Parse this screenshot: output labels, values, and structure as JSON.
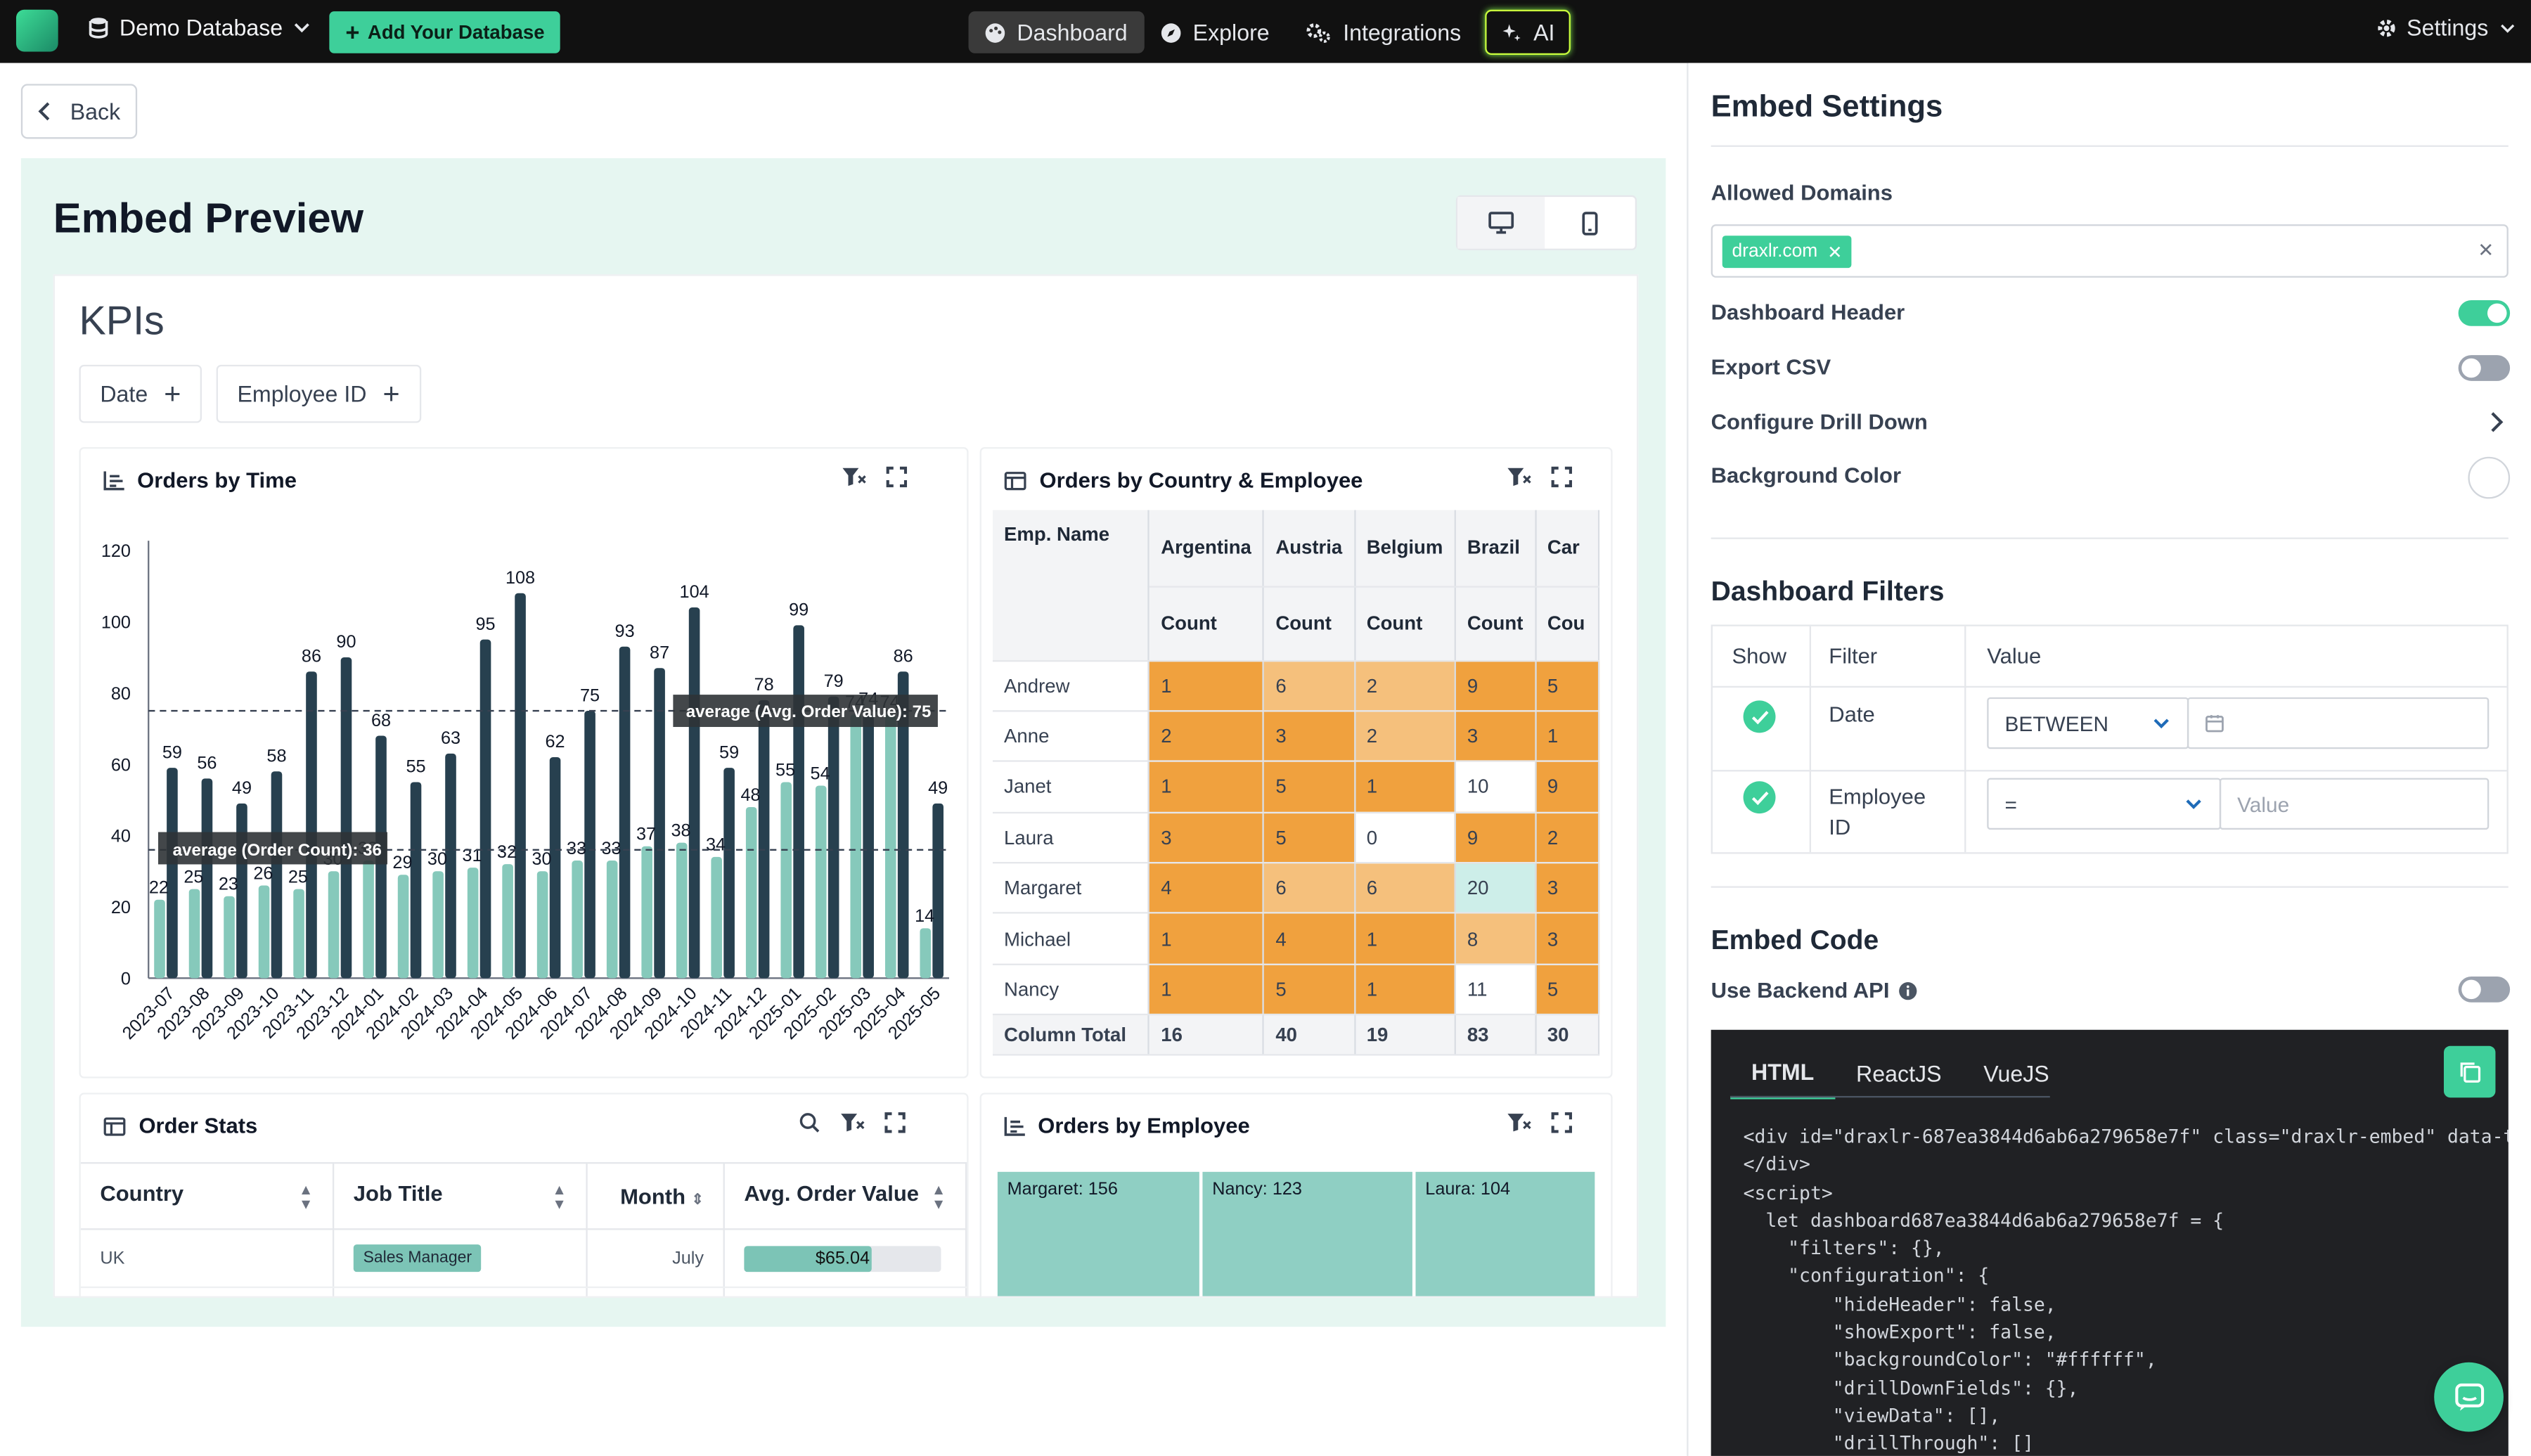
{
  "topbar": {
    "database": "Demo Database",
    "add_db": "Add Your Database",
    "nav": [
      {
        "label": "Dashboard",
        "icon": "palette-icon"
      },
      {
        "label": "Explore",
        "icon": "compass-icon"
      },
      {
        "label": "Integrations",
        "icon": "gears-icon"
      },
      {
        "label": "AI",
        "icon": "sparkles-icon"
      }
    ],
    "settings": "Settings"
  },
  "back_label": "Back",
  "preview": {
    "title": "Embed Preview",
    "dashboard_title": "KPIs",
    "filters": [
      "Date",
      "Employee ID"
    ]
  },
  "cards": {
    "orders_by_time": "Orders by Time",
    "orders_by_country": "Orders by Country & Employee",
    "order_stats": "Order Stats",
    "orders_by_employee": "Orders by Employee"
  },
  "chart_data": {
    "type": "bar",
    "title": "Orders by Time",
    "categories": [
      "2023-07",
      "2023-08",
      "2023-09",
      "2023-10",
      "2023-11",
      "2023-12",
      "2024-01",
      "2024-02",
      "2024-03",
      "2024-04",
      "2024-05",
      "2024-06",
      "2024-07",
      "2024-08",
      "2024-09",
      "2024-10",
      "2024-11",
      "2024-12",
      "2025-01",
      "2025-02",
      "2025-03",
      "2025-04",
      "2025-05"
    ],
    "series": [
      {
        "values": [
          22,
          25,
          23,
          26,
          25,
          30,
          33,
          29,
          30,
          31,
          32,
          30,
          33,
          33,
          37,
          38,
          34,
          48,
          55,
          54,
          74,
          74,
          14
        ],
        "color": "#86c9bb"
      },
      {
        "values": [
          59,
          56,
          49,
          58,
          86,
          90,
          68,
          55,
          63,
          95,
          108,
          62,
          75,
          93,
          87,
          104,
          59,
          78,
          99,
          79,
          74,
          86,
          49
        ],
        "color": "#27404f"
      }
    ],
    "ylim": [
      0,
      120
    ],
    "yticks": [
      0,
      20,
      40,
      60,
      80,
      100,
      120
    ],
    "grid": false,
    "reference_lines": [
      {
        "label": "average (Order Count): 36",
        "value": 36
      },
      {
        "label": "average (Avg. Order Value): 75",
        "value": 75
      }
    ]
  },
  "pivot": {
    "row_header": "Emp. Name",
    "countries": [
      "Argentina",
      "Austria",
      "Belgium",
      "Brazil",
      "Car"
    ],
    "measure": "Count",
    "measure_cut": "Cou",
    "rows": [
      {
        "name": "Andrew",
        "values": [
          "1",
          "6",
          "2",
          "9",
          "5"
        ]
      },
      {
        "name": "Anne",
        "values": [
          "2",
          "3",
          "2",
          "3",
          "1"
        ]
      },
      {
        "name": "Janet",
        "values": [
          "1",
          "5",
          "1",
          "10",
          "9"
        ]
      },
      {
        "name": "Laura",
        "values": [
          "3",
          "5",
          "0",
          "9",
          "2"
        ]
      },
      {
        "name": "Margaret",
        "values": [
          "4",
          "6",
          "6",
          "20",
          "3"
        ]
      },
      {
        "name": "Michael",
        "values": [
          "1",
          "4",
          "1",
          "8",
          "3"
        ]
      },
      {
        "name": "Nancy",
        "values": [
          "1",
          "5",
          "1",
          "11",
          "5"
        ]
      }
    ],
    "total_label": "Column Total",
    "totals": [
      "16",
      "40",
      "19",
      "83",
      "30"
    ]
  },
  "order_stats": {
    "columns": [
      "Country",
      "Job Title",
      "Month",
      "Avg. Order Value"
    ],
    "rows": [
      {
        "country": "UK",
        "job": "Sales Manager",
        "month": "July",
        "value": "$65.04",
        "fill": 0.65
      }
    ]
  },
  "employee_treemap": [
    {
      "label": "Margaret: 156"
    },
    {
      "label": "Nancy: 123"
    },
    {
      "label": "Laura: 104"
    }
  ],
  "settings": {
    "title": "Embed Settings",
    "allowed_domains_label": "Allowed Domains",
    "domain_tag": "draxlr.com",
    "dashboard_header": "Dashboard Header",
    "export_csv": "Export CSV",
    "configure_drill": "Configure Drill Down",
    "background_color": "Background Color",
    "dashboard_filters": "Dashboard Filters",
    "df_cols": [
      "Show",
      "Filter",
      "Value"
    ],
    "df_rows": [
      {
        "filter": "Date",
        "operator": "BETWEEN",
        "value_placeholder": ""
      },
      {
        "filter": "Employee ID",
        "operator": "=",
        "value_placeholder": "Value"
      }
    ],
    "embed_code": "Embed Code",
    "use_backend_api": "Use Backend API",
    "code_tabs": [
      "HTML",
      "ReactJS",
      "VueJS"
    ]
  },
  "code_snippet": "<div id=\"draxlr-687ea3844d6ab6a279658e7f\" class=\"draxlr-embed\" data-t\n</div>\n<script>\n  let dashboard687ea3844d6ab6a279658e7f = {\n    \"filters\": {},\n    \"configuration\": {\n        \"hideHeader\": false,\n        \"showExport\": false,\n        \"backgroundColor\": \"#ffffff\",\n        \"drillDownFields\": {},\n        \"viewData\": [],\n        \"drillThrough\": []"
}
